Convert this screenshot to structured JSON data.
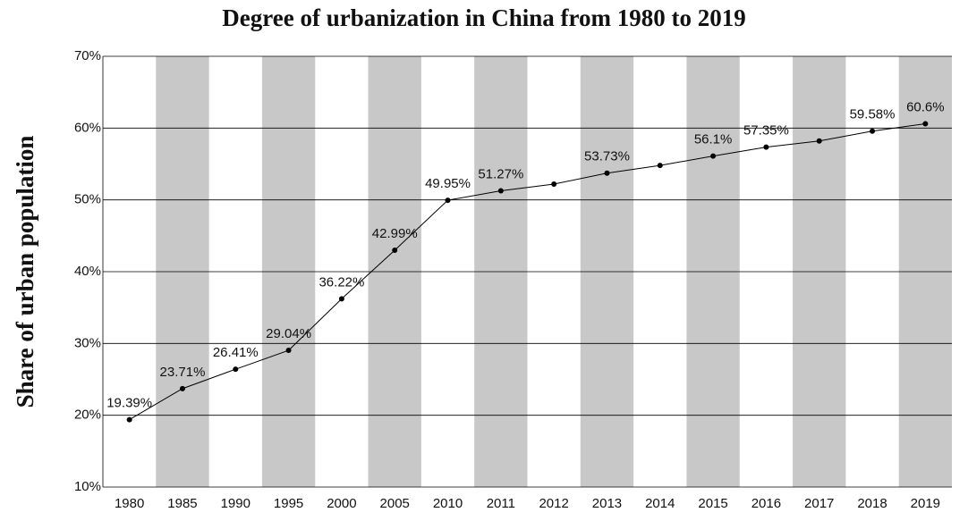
{
  "chart_data": {
    "type": "line",
    "title": "Degree of urbanization in China from 1980 to 2019",
    "ylabel": "Share of urban population",
    "categories": [
      "1980",
      "1985",
      "1990",
      "1995",
      "2000",
      "2005",
      "2010",
      "2011",
      "2012",
      "2013",
      "2014",
      "2015",
      "2016",
      "2017",
      "2018",
      "2019"
    ],
    "values": [
      19.39,
      23.71,
      26.41,
      29.04,
      36.22,
      42.99,
      49.95,
      51.27,
      52.2,
      53.73,
      54.8,
      56.1,
      57.35,
      58.2,
      59.58,
      60.6
    ],
    "value_labels": [
      "19.39%",
      "23.71%",
      "26.41%",
      "29.04%",
      "36.22%",
      "42.99%",
      "49.95%",
      "51.27%",
      null,
      "53.73%",
      null,
      "56.1%",
      "57.35%",
      null,
      "59.58%",
      "60.6%"
    ],
    "color": "#000000",
    "ylim": [
      10,
      70
    ],
    "yticks": [
      {
        "value": 10,
        "label": "10%"
      },
      {
        "value": 20,
        "label": "20%"
      },
      {
        "value": 30,
        "label": "30%"
      },
      {
        "value": 40,
        "label": "40%"
      },
      {
        "value": 50,
        "label": "50%"
      },
      {
        "value": 60,
        "label": "60%"
      },
      {
        "value": 70,
        "label": "70%"
      }
    ],
    "grid": true
  }
}
